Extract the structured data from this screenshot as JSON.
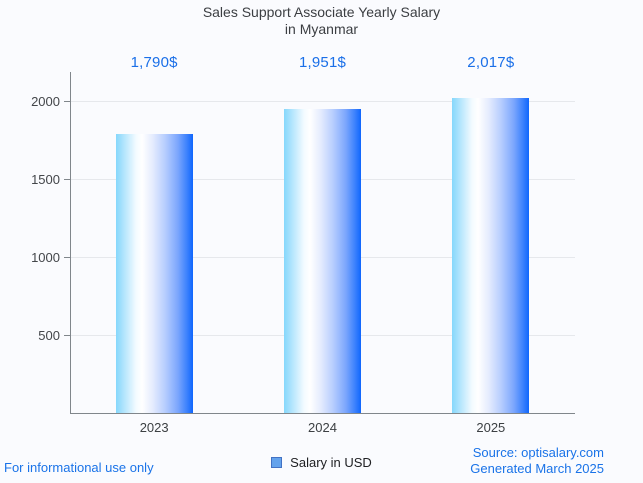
{
  "chart_data": {
    "type": "bar",
    "title": "Sales Support Associate Yearly Salary in Myanmar",
    "title_lines": [
      "Sales Support Associate Yearly Salary",
      "in Myanmar"
    ],
    "categories": [
      "2023",
      "2024",
      "2025"
    ],
    "series": [
      {
        "name": "Salary in USD",
        "values": [
          1790,
          1951,
          2017
        ]
      }
    ],
    "value_labels": [
      "1,790$",
      "1,951$",
      "2,017$"
    ],
    "xlabel": "",
    "ylabel": "",
    "y_ticks": [
      500,
      1000,
      1500,
      2000
    ],
    "ylim": [
      0,
      2186
    ],
    "grid": true,
    "legend_position": "bottom",
    "colors": {
      "annotation": "#1a6fe8",
      "bar_gradient_start": "#85d7fc",
      "bar_gradient_mid": "#ffffff",
      "bar_gradient_end": "#0f66fd",
      "legend_marker_fill": "#63a2ec",
      "legend_marker_border": "#4272c4",
      "axis_line": "#80868b",
      "gridline": "#e6e8ec",
      "title_color": "#3b3e42",
      "footer_blue": "#1a73e8"
    }
  },
  "footer": {
    "disclaimer": "For informational use only",
    "source": "Source: optisalary.com",
    "generated": "Generated March 2025"
  }
}
